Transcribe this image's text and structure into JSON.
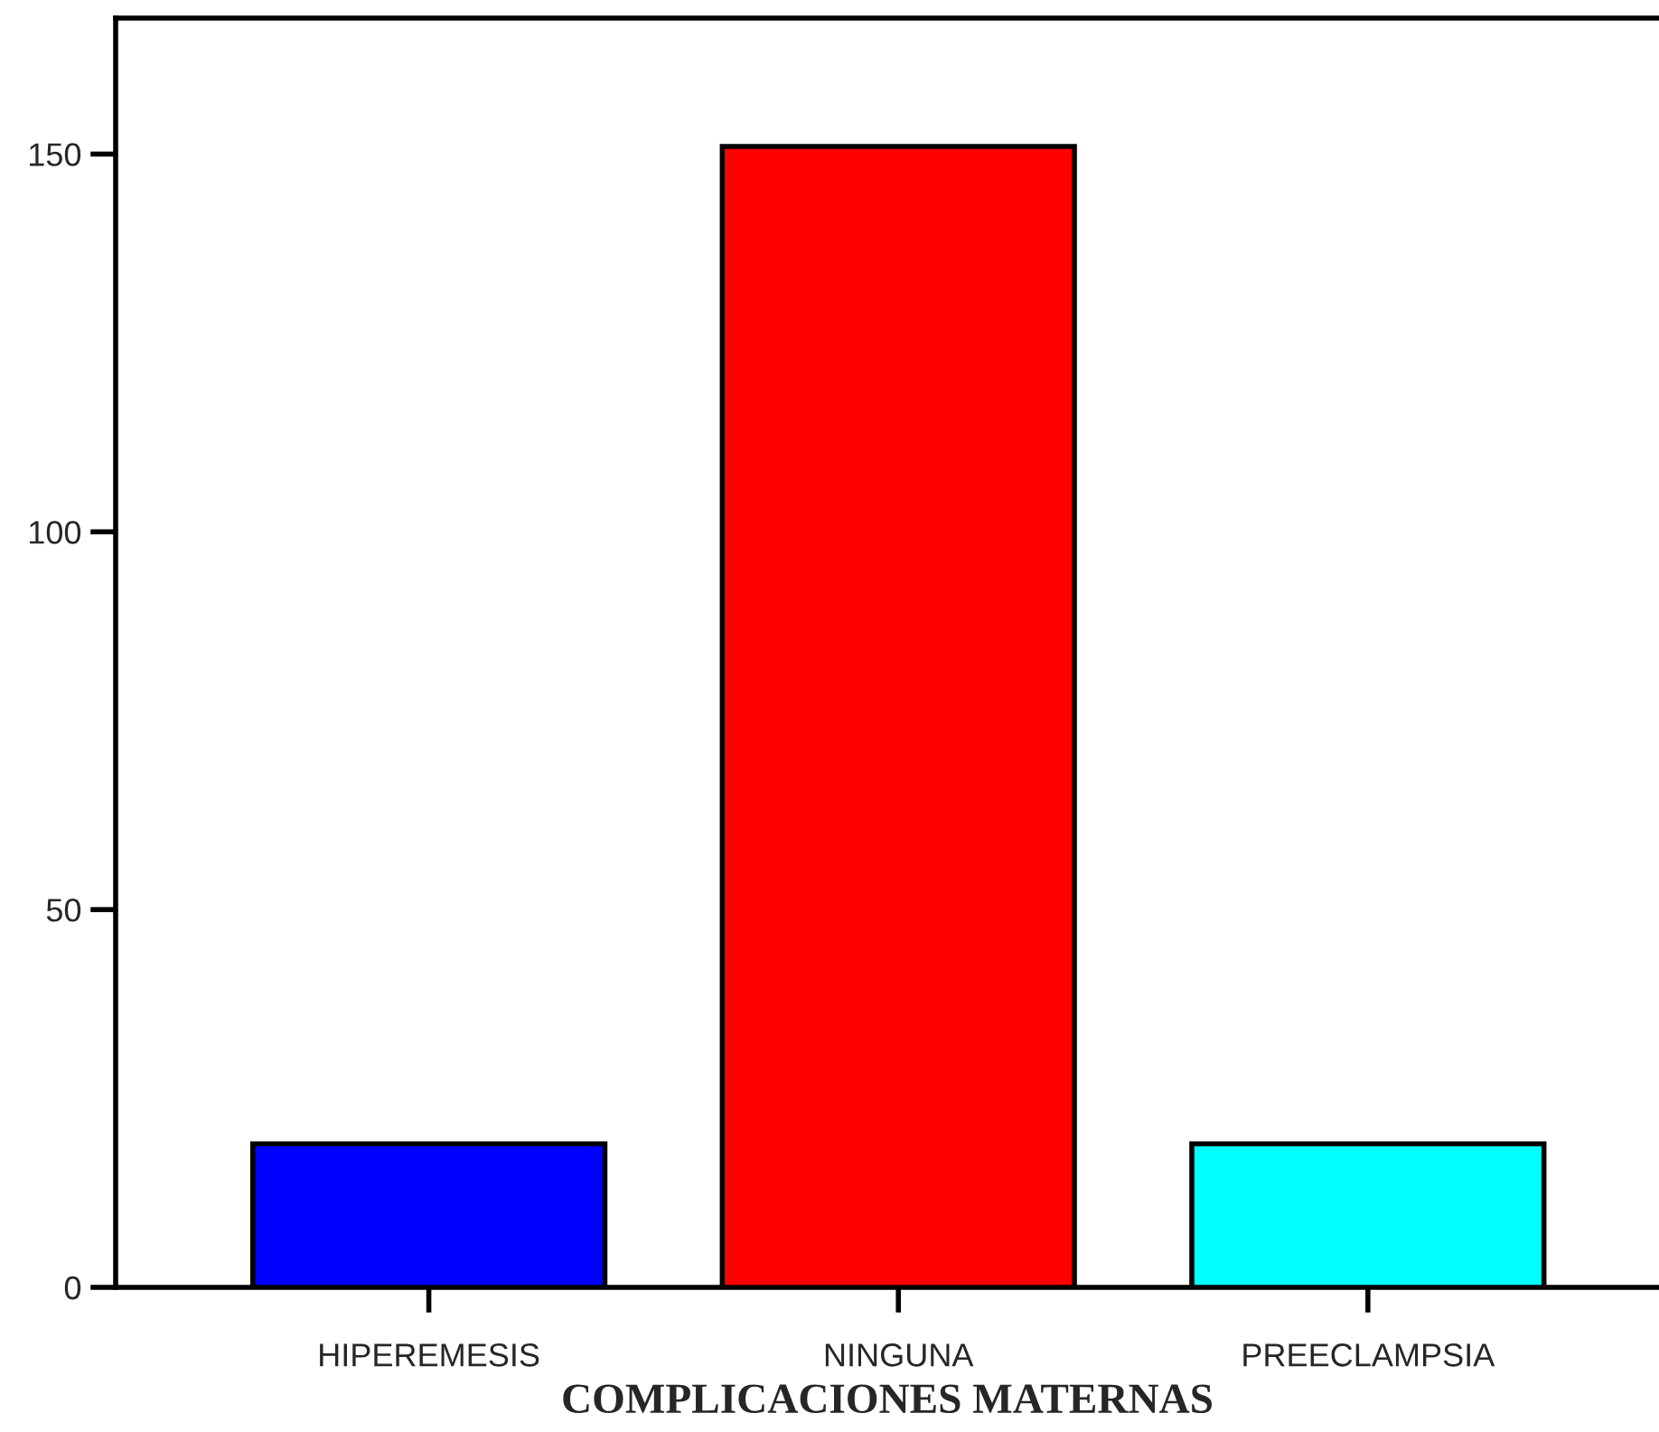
{
  "chart_data": {
    "type": "bar",
    "xlabel": "COMPLICACIONES MATERNAS",
    "categories": [
      "HIPEREMESIS",
      "NINGUNA",
      "PREECLAMPSIA"
    ],
    "values": [
      19,
      151,
      19
    ],
    "colors": [
      "#0000ff",
      "#ff0000",
      "#00ffff"
    ],
    "ylim": [
      0,
      168
    ],
    "yticks": [
      0,
      50,
      100,
      150
    ],
    "grid": false,
    "legend": false
  }
}
